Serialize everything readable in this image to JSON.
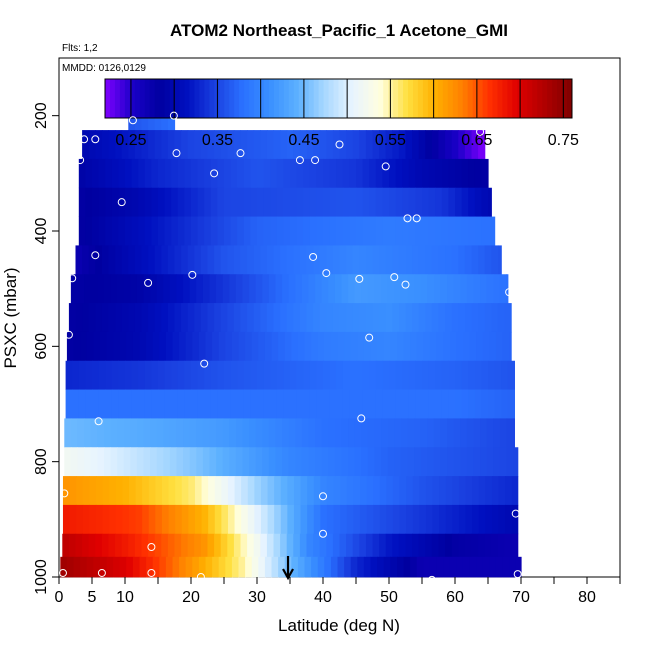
{
  "chart_data": {
    "type": "heatmap",
    "title": "ATOM2 Northeast_Pacific_1 Acetone_GMI",
    "flights_label": "Flts: 1,2",
    "dates_label": "MMDD: 0126,0129",
    "xlabel": "Latitude (deg N)",
    "ylabel": "PSXC (mbar)",
    "xlim": [
      0,
      85
    ],
    "ylim": [
      1000,
      100
    ],
    "x_ticks": [
      0,
      5,
      10,
      20,
      30,
      40,
      50,
      60,
      70,
      80
    ],
    "y_ticks": [
      200,
      400,
      600,
      800,
      1000
    ],
    "colorbar": {
      "range": [
        0.22,
        0.76
      ],
      "ticks": [
        0.25,
        0.35,
        0.45,
        0.55,
        0.65,
        0.75
      ],
      "tick_labels": [
        "0.25",
        "0.35",
        "0.45",
        "0.55",
        "0.65",
        "0.75"
      ],
      "colors": [
        "#8000ff",
        "#1a00c8",
        "#0000a0",
        "#0010c0",
        "#1a40e0",
        "#2a70ff",
        "#3a90ff",
        "#5cb0ff",
        "#a8d8ff",
        "#e8f4ff",
        "#ffffe0",
        "#ffe040",
        "#ffb000",
        "#ff8000",
        "#ff3000",
        "#e00000",
        "#b00000",
        "#800000"
      ]
    },
    "bands": [
      {
        "p_top": 170,
        "p_bot": 225,
        "x_start": 10.5,
        "x_end": 17.5,
        "values": [
          [
            10.5,
            0.36
          ],
          [
            17.5,
            0.38
          ]
        ]
      },
      {
        "p_top": 225,
        "p_bot": 275,
        "x_start": 3.5,
        "x_end": 64.5,
        "values": [
          [
            3.5,
            0.3
          ],
          [
            20,
            0.35
          ],
          [
            35,
            0.37
          ],
          [
            45,
            0.35
          ],
          [
            52,
            0.32
          ],
          [
            58,
            0.27
          ],
          [
            64.5,
            0.22
          ]
        ]
      },
      {
        "p_top": 275,
        "p_bot": 325,
        "x_start": 3,
        "x_end": 65,
        "values": [
          [
            3,
            0.29
          ],
          [
            15,
            0.33
          ],
          [
            30,
            0.36
          ],
          [
            45,
            0.34
          ],
          [
            55,
            0.3
          ],
          [
            65,
            0.28
          ]
        ]
      },
      {
        "p_top": 325,
        "p_bot": 375,
        "x_start": 3,
        "x_end": 65.5,
        "values": [
          [
            3,
            0.28
          ],
          [
            12,
            0.3
          ],
          [
            25,
            0.35
          ],
          [
            45,
            0.36
          ],
          [
            58,
            0.34
          ],
          [
            65.5,
            0.3
          ]
        ]
      },
      {
        "p_top": 375,
        "p_bot": 425,
        "x_start": 3,
        "x_end": 66,
        "values": [
          [
            3,
            0.28
          ],
          [
            15,
            0.32
          ],
          [
            30,
            0.37
          ],
          [
            50,
            0.39
          ],
          [
            66,
            0.38
          ]
        ]
      },
      {
        "p_top": 425,
        "p_bot": 475,
        "x_start": 2.5,
        "x_end": 67,
        "values": [
          [
            2.5,
            0.27
          ],
          [
            10,
            0.3
          ],
          [
            25,
            0.36
          ],
          [
            45,
            0.4
          ],
          [
            60,
            0.38
          ],
          [
            67,
            0.36
          ]
        ]
      },
      {
        "p_top": 475,
        "p_bot": 525,
        "x_start": 1.8,
        "x_end": 68,
        "values": [
          [
            1.8,
            0.28
          ],
          [
            12,
            0.29
          ],
          [
            25,
            0.34
          ],
          [
            45,
            0.42
          ],
          [
            55,
            0.41
          ],
          [
            68,
            0.38
          ]
        ]
      },
      {
        "p_top": 525,
        "p_bot": 575,
        "x_start": 1.5,
        "x_end": 68.5,
        "values": [
          [
            1.5,
            0.28
          ],
          [
            12,
            0.3
          ],
          [
            25,
            0.35
          ],
          [
            40,
            0.4
          ],
          [
            50,
            0.41
          ],
          [
            60,
            0.38
          ],
          [
            68.5,
            0.37
          ]
        ]
      },
      {
        "p_top": 575,
        "p_bot": 625,
        "x_start": 1.2,
        "x_end": 68.5,
        "values": [
          [
            1.2,
            0.28
          ],
          [
            12,
            0.3
          ],
          [
            25,
            0.35
          ],
          [
            40,
            0.39
          ],
          [
            50,
            0.4
          ],
          [
            60,
            0.38
          ],
          [
            68.5,
            0.37
          ]
        ]
      },
      {
        "p_top": 625,
        "p_bot": 675,
        "x_start": 1.0,
        "x_end": 69,
        "values": [
          [
            1,
            0.33
          ],
          [
            12,
            0.34
          ],
          [
            25,
            0.36
          ],
          [
            45,
            0.38
          ],
          [
            60,
            0.37
          ],
          [
            69,
            0.36
          ]
        ]
      },
      {
        "p_top": 675,
        "p_bot": 725,
        "x_start": 1.0,
        "x_end": 69,
        "values": [
          [
            1,
            0.38
          ],
          [
            12,
            0.38
          ],
          [
            25,
            0.38
          ],
          [
            45,
            0.38
          ],
          [
            60,
            0.38
          ],
          [
            69,
            0.37
          ]
        ]
      },
      {
        "p_top": 725,
        "p_bot": 775,
        "x_start": 0.8,
        "x_end": 69,
        "values": [
          [
            0.8,
            0.45
          ],
          [
            10,
            0.44
          ],
          [
            25,
            0.42
          ],
          [
            40,
            0.38
          ],
          [
            55,
            0.37
          ],
          [
            69,
            0.35
          ]
        ]
      },
      {
        "p_top": 775,
        "p_bot": 825,
        "x_start": 0.8,
        "x_end": 69.5,
        "values": [
          [
            0.8,
            0.52
          ],
          [
            8,
            0.5
          ],
          [
            20,
            0.46
          ],
          [
            35,
            0.4
          ],
          [
            50,
            0.37
          ],
          [
            69.5,
            0.35
          ]
        ]
      },
      {
        "p_top": 825,
        "p_bot": 875,
        "x_start": 0.6,
        "x_end": 69.5,
        "values": [
          [
            0.6,
            0.62
          ],
          [
            10,
            0.6
          ],
          [
            20,
            0.56
          ],
          [
            30,
            0.47
          ],
          [
            40,
            0.4
          ],
          [
            55,
            0.36
          ],
          [
            69.5,
            0.33
          ]
        ]
      },
      {
        "p_top": 875,
        "p_bot": 925,
        "x_start": 0.6,
        "x_end": 69.5,
        "values": [
          [
            0.6,
            0.68
          ],
          [
            12,
            0.66
          ],
          [
            22,
            0.6
          ],
          [
            32,
            0.48
          ],
          [
            40,
            0.38
          ],
          [
            55,
            0.34
          ],
          [
            69.5,
            0.3
          ]
        ]
      },
      {
        "p_top": 925,
        "p_bot": 965,
        "x_start": 0.5,
        "x_end": 69.5,
        "values": [
          [
            0.5,
            0.72
          ],
          [
            10,
            0.68
          ],
          [
            22,
            0.62
          ],
          [
            30,
            0.52
          ],
          [
            38,
            0.4
          ],
          [
            50,
            0.32
          ],
          [
            60,
            0.28
          ],
          [
            69.5,
            0.27
          ]
        ]
      },
      {
        "p_top": 965,
        "p_bot": 1000,
        "x_start": 0.2,
        "x_end": 70,
        "values": [
          [
            0.2,
            0.74
          ],
          [
            10,
            0.7
          ],
          [
            20,
            0.62
          ],
          [
            28,
            0.55
          ],
          [
            35,
            0.45
          ],
          [
            45,
            0.33
          ],
          [
            55,
            0.27
          ],
          [
            70,
            0.27
          ]
        ]
      }
    ],
    "observations": [
      {
        "lat": 11.2,
        "p": 208
      },
      {
        "lat": 17.4,
        "p": 200
      },
      {
        "lat": 3.8,
        "p": 241
      },
      {
        "lat": 5.5,
        "p": 241
      },
      {
        "lat": 42.5,
        "p": 250
      },
      {
        "lat": 63.8,
        "p": 228
      },
      {
        "lat": 3.2,
        "p": 277
      },
      {
        "lat": 17.8,
        "p": 265
      },
      {
        "lat": 27.5,
        "p": 265
      },
      {
        "lat": 36.5,
        "p": 277
      },
      {
        "lat": 38.8,
        "p": 277
      },
      {
        "lat": 23.5,
        "p": 300
      },
      {
        "lat": 49.5,
        "p": 288
      },
      {
        "lat": 9.5,
        "p": 350
      },
      {
        "lat": 52.8,
        "p": 378
      },
      {
        "lat": 54.2,
        "p": 378
      },
      {
        "lat": 5.5,
        "p": 442
      },
      {
        "lat": 38.5,
        "p": 445
      },
      {
        "lat": 2.0,
        "p": 482
      },
      {
        "lat": 13.5,
        "p": 490
      },
      {
        "lat": 20.2,
        "p": 476
      },
      {
        "lat": 40.5,
        "p": 473
      },
      {
        "lat": 45.5,
        "p": 483
      },
      {
        "lat": 50.8,
        "p": 480
      },
      {
        "lat": 52.5,
        "p": 493
      },
      {
        "lat": 68.2,
        "p": 506
      },
      {
        "lat": 1.5,
        "p": 580
      },
      {
        "lat": 47.0,
        "p": 585
      },
      {
        "lat": 22.0,
        "p": 630
      },
      {
        "lat": 6.0,
        "p": 730
      },
      {
        "lat": 45.8,
        "p": 725
      },
      {
        "lat": 0.8,
        "p": 855
      },
      {
        "lat": 40.0,
        "p": 860
      },
      {
        "lat": 69.2,
        "p": 890
      },
      {
        "lat": 40.0,
        "p": 925
      },
      {
        "lat": 14.0,
        "p": 948
      },
      {
        "lat": 0.6,
        "p": 993
      },
      {
        "lat": 6.5,
        "p": 993
      },
      {
        "lat": 14.0,
        "p": 993
      },
      {
        "lat": 21.5,
        "p": 1000
      },
      {
        "lat": 46.0,
        "p": 1010
      },
      {
        "lat": 56.5,
        "p": 1005
      },
      {
        "lat": 69.5,
        "p": 995
      }
    ],
    "marker": {
      "lat": 34.7,
      "p": 1000,
      "symbol": "down-arrow"
    }
  }
}
